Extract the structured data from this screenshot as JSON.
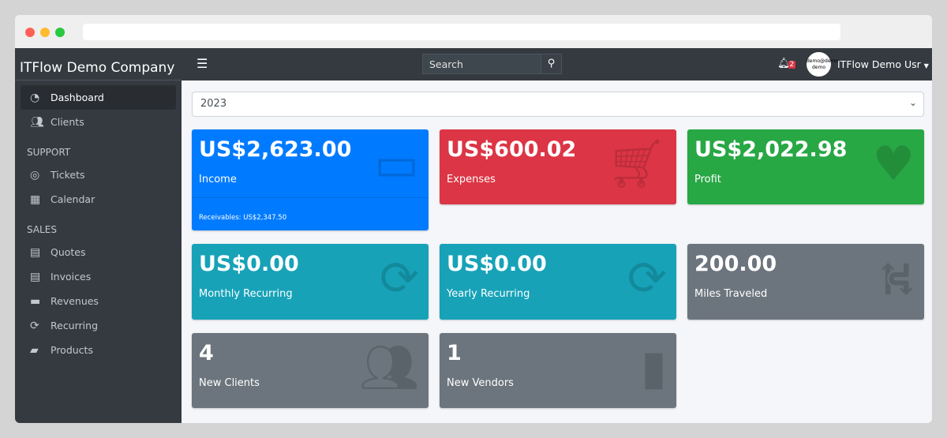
{
  "sidebar": {
    "brand": "ITFlow Demo Company",
    "items": [
      {
        "label": "Dashboard",
        "icon": "tachometer-icon"
      },
      {
        "label": "Clients",
        "icon": "users-icon"
      }
    ],
    "support_header": "SUPPORT",
    "support": [
      {
        "label": "Tickets",
        "icon": "life-ring-icon"
      },
      {
        "label": "Calendar",
        "icon": "calendar-icon"
      }
    ],
    "sales_header": "SALES",
    "sales": [
      {
        "label": "Quotes",
        "icon": "file-icon"
      },
      {
        "label": "Invoices",
        "icon": "invoice-icon"
      },
      {
        "label": "Revenues",
        "icon": "credit-card-icon"
      },
      {
        "label": "Recurring",
        "icon": "sync-icon"
      },
      {
        "label": "Products",
        "icon": "box-icon"
      }
    ]
  },
  "topbar": {
    "search_placeholder": "Search",
    "notifications": "2",
    "avatar_text": "demo@demo demo",
    "user": "ITFlow Demo Usr"
  },
  "year_select": "2023",
  "cards": [
    {
      "value": "US$2,623.00",
      "label": "Income",
      "footer": "Receivables: US$2,347.50",
      "color": "#007bff"
    },
    {
      "value": "US$600.02",
      "label": "Expenses",
      "color": "#dc3545"
    },
    {
      "value": "US$2,022.98",
      "label": "Profit",
      "color": "#28a745"
    },
    {
      "value": "US$0.00",
      "label": "Monthly Recurring",
      "color": "#17a2b8"
    },
    {
      "value": "US$0.00",
      "label": "Yearly Recurring",
      "color": "#17a2b8"
    },
    {
      "value": "200.00",
      "label": "Miles Traveled",
      "color": "#6c757d"
    },
    {
      "value": "4",
      "label": "New Clients",
      "color": "#6c757d"
    },
    {
      "value": "1",
      "label": "New Vendors",
      "color": "#6c757d"
    }
  ]
}
